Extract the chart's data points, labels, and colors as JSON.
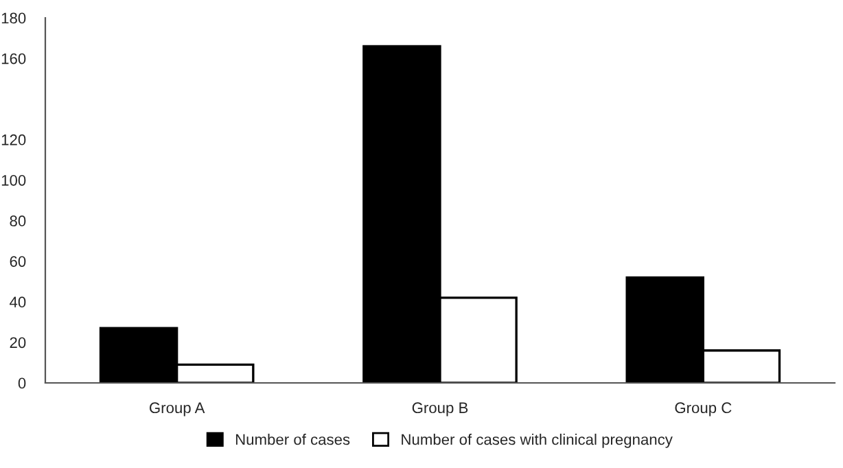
{
  "chart_data": {
    "type": "bar",
    "categories": [
      "Group A",
      "Group B",
      "Group C"
    ],
    "series": [
      {
        "name": "Number of cases",
        "color": "#000000",
        "values": [
          27,
          166,
          52
        ]
      },
      {
        "name": "Number of cases with clinical pregnancy",
        "color": "#ffffff",
        "values": [
          9,
          42,
          16
        ]
      }
    ],
    "ylim": [
      0,
      180
    ],
    "yticks": [
      0,
      20,
      40,
      60,
      80,
      100,
      120,
      160,
      180
    ],
    "grid": false,
    "legend": "bottom"
  }
}
